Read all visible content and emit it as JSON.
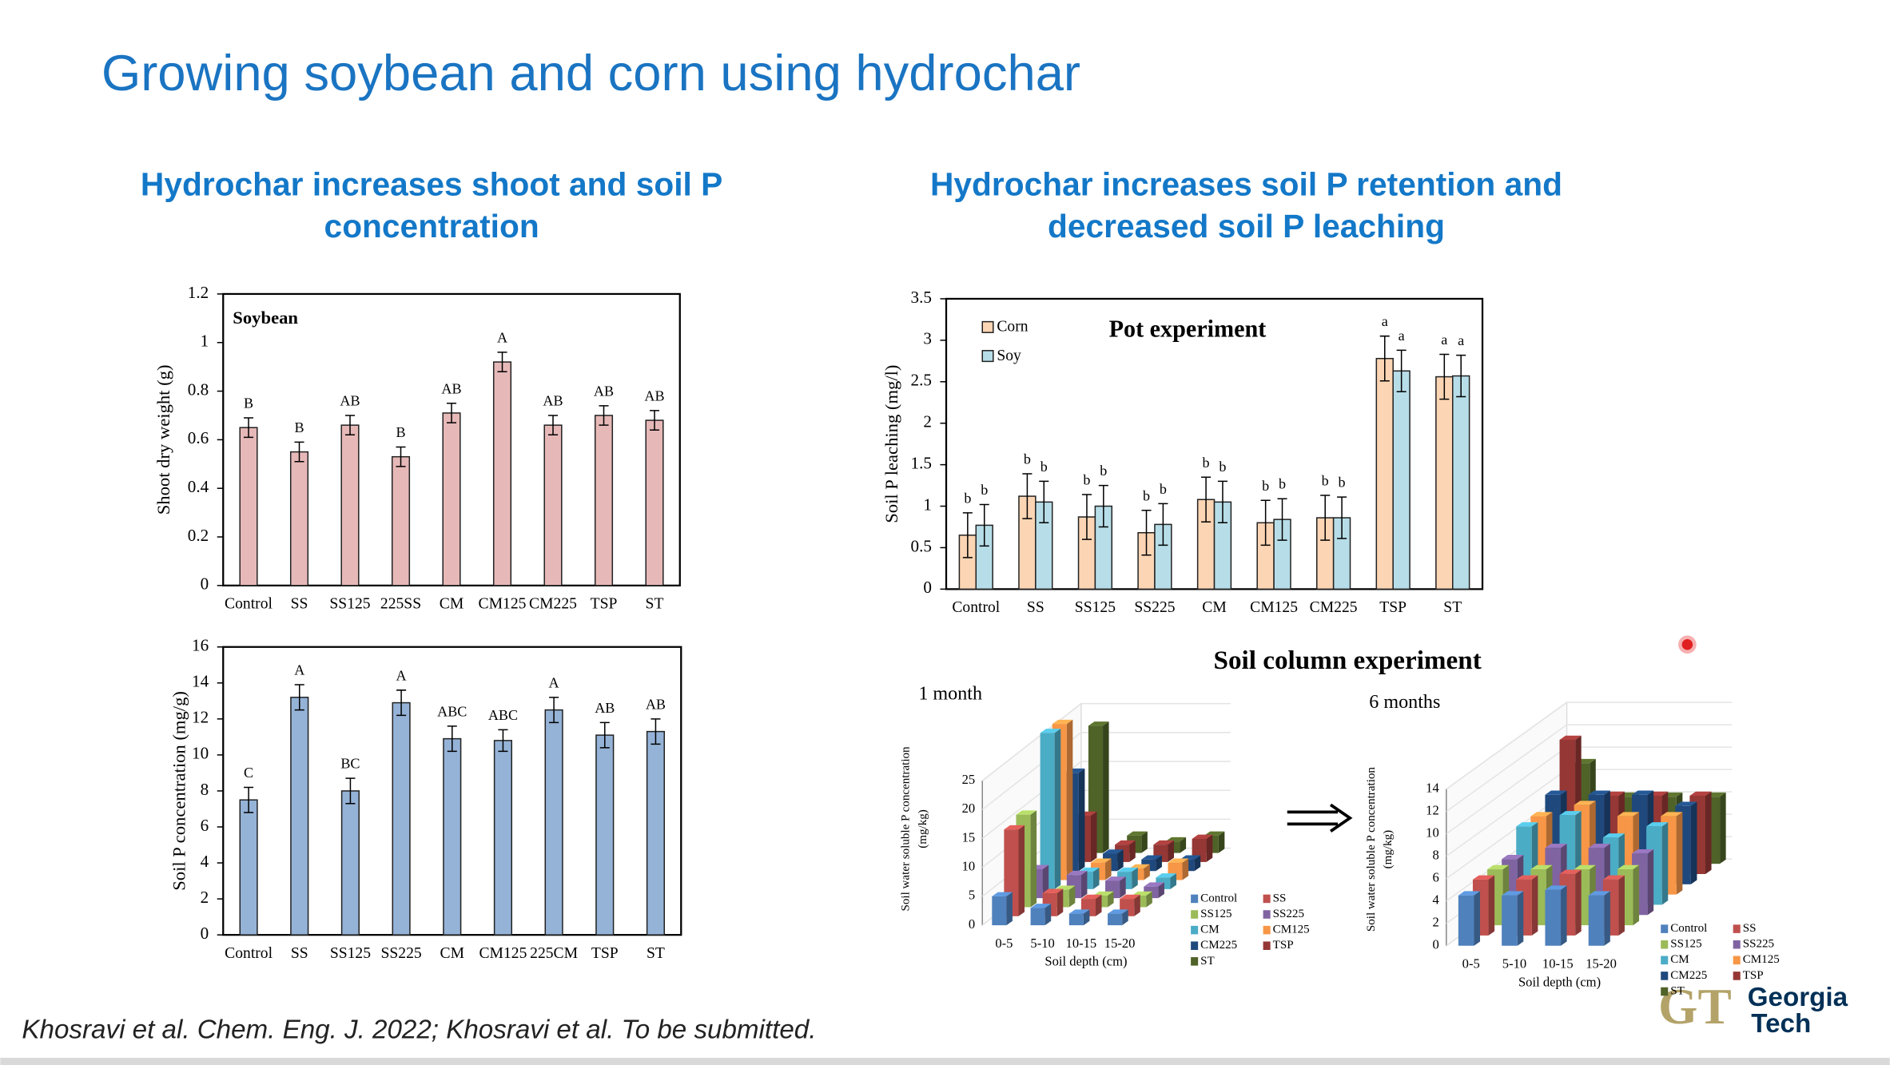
{
  "slide": {
    "title": "Growing soybean and corn using hydrochar",
    "left_heading": [
      "Hydrochar increases shoot and soil P",
      "concentration"
    ],
    "right_heading": [
      "Hydrochar increases soil P retention and",
      "decreased soil P leaching"
    ],
    "column_heading": "Soil column experiment",
    "citation": "Khosravi et al. Chem. Eng. J. 2022; Khosravi et al. To be submitted.",
    "logo": {
      "mark": "GT",
      "name": [
        "Georgia",
        "Tech"
      ]
    }
  },
  "chart_data": [
    {
      "type": "bar",
      "annotation": "Soybean",
      "y_label": "Shoot dry weight (g)",
      "categories": [
        "Control",
        "SS",
        "SS125",
        "225SS",
        "CM",
        "CM125",
        "CM225",
        "TSP",
        "ST"
      ],
      "values": [
        0.65,
        0.55,
        0.66,
        0.53,
        0.71,
        0.92,
        0.66,
        0.7,
        0.68
      ],
      "errors": [
        0.04,
        0.04,
        0.04,
        0.04,
        0.04,
        0.04,
        0.04,
        0.04,
        0.04
      ],
      "letters": [
        "B",
        "B",
        "AB",
        "B",
        "AB",
        "A",
        "AB",
        "AB",
        "AB"
      ],
      "color": "#e6b9b8",
      "ylim": [
        0,
        1.2
      ],
      "yticks": [
        0,
        0.2,
        0.4,
        0.6,
        0.8,
        1,
        1.2
      ]
    },
    {
      "type": "bar",
      "y_label": "Soil P concentration (mg/g)",
      "categories": [
        "Control",
        "SS",
        "SS125",
        "SS225",
        "CM",
        "CM125",
        "225CM",
        "TSP",
        "ST"
      ],
      "values": [
        7.5,
        13.2,
        8.0,
        12.9,
        10.9,
        10.8,
        12.5,
        11.1,
        11.3
      ],
      "errors": [
        0.7,
        0.7,
        0.7,
        0.7,
        0.7,
        0.6,
        0.7,
        0.7,
        0.7
      ],
      "letters": [
        "C",
        "A",
        "BC",
        "A",
        "ABC",
        "ABC",
        "A",
        "AB",
        "AB"
      ],
      "color": "#95b3d7",
      "ylim": [
        0,
        16
      ],
      "yticks": [
        0,
        2,
        4,
        6,
        8,
        10,
        12,
        14,
        16
      ]
    },
    {
      "type": "bar",
      "title": "Pot experiment",
      "y_label": "Soil P leaching (mg/l)",
      "categories": [
        "Control",
        "SS",
        "SS125",
        "SS225",
        "CM",
        "CM125",
        "CM225",
        "TSP",
        "ST"
      ],
      "series": [
        {
          "name": "Corn",
          "color": "#fcd5b4",
          "values": [
            0.65,
            1.12,
            0.87,
            0.68,
            1.08,
            0.8,
            0.86,
            2.78,
            2.56
          ],
          "errors": [
            0.27,
            0.27,
            0.27,
            0.27,
            0.27,
            0.27,
            0.27,
            0.27,
            0.27
          ],
          "letters": [
            "b",
            "b",
            "b",
            "b",
            "b",
            "b",
            "b",
            "a",
            "a"
          ]
        },
        {
          "name": "Soy",
          "color": "#b7dee8",
          "values": [
            0.77,
            1.05,
            1.0,
            0.78,
            1.05,
            0.84,
            0.86,
            2.63,
            2.57
          ],
          "errors": [
            0.25,
            0.25,
            0.25,
            0.25,
            0.25,
            0.25,
            0.25,
            0.25,
            0.25
          ],
          "letters": [
            "b",
            "b",
            "b",
            "b",
            "b",
            "b",
            "b",
            "a",
            "a"
          ]
        }
      ],
      "legend": "top-left",
      "ylim": [
        0,
        3.5
      ],
      "yticks": [
        0,
        0.5,
        1,
        1.5,
        2,
        2.5,
        3,
        3.5
      ]
    },
    {
      "type": "bar3d",
      "subtitle": "1 month",
      "y_label": [
        "Soil water soluble P concentration",
        "(mg/kg)"
      ],
      "x_label": "Soil depth (cm)",
      "categories": [
        "0-5",
        "5-10",
        "10-15",
        "15-20"
      ],
      "series": [
        {
          "name": "Control",
          "color": "#4f81bd",
          "values": [
            5,
            3,
            2,
            2
          ]
        },
        {
          "name": "SS",
          "color": "#c0504d",
          "values": [
            15,
            4,
            3,
            3
          ]
        },
        {
          "name": "SS125",
          "color": "#9bbb59",
          "values": [
            16,
            3,
            2,
            2
          ]
        },
        {
          "name": "SS225",
          "color": "#8064a2",
          "values": [
            5,
            4,
            3,
            2
          ]
        },
        {
          "name": "CM",
          "color": "#4bacc6",
          "values": [
            27,
            3,
            3,
            2
          ]
        },
        {
          "name": "CM125",
          "color": "#f79646",
          "values": [
            27,
            3,
            2,
            3
          ]
        },
        {
          "name": "CM225",
          "color": "#1f497d",
          "values": [
            17,
            3,
            2,
            2
          ]
        },
        {
          "name": "TSP",
          "color": "#953735",
          "values": [
            8,
            3,
            3,
            4
          ]
        },
        {
          "name": "ST",
          "color": "#4f6228",
          "values": [
            22,
            3,
            2,
            3
          ]
        }
      ],
      "ylim": [
        0,
        25
      ],
      "yticks": [
        0,
        5,
        10,
        15,
        20,
        25
      ]
    },
    {
      "type": "bar3d",
      "subtitle": "6 months",
      "y_label": [
        "Soil water soluble P concentration",
        "(mg/kg)"
      ],
      "x_label": "Soil depth (cm)",
      "categories": [
        "0-5",
        "5-10",
        "10-15",
        "15-20"
      ],
      "series": [
        {
          "name": "Control",
          "color": "#4f81bd",
          "values": [
            4.5,
            4.5,
            5,
            4.5
          ]
        },
        {
          "name": "SS",
          "color": "#c0504d",
          "values": [
            5,
            5,
            5.5,
            5
          ]
        },
        {
          "name": "SS125",
          "color": "#9bbb59",
          "values": [
            5,
            5,
            5,
            5
          ]
        },
        {
          "name": "SS225",
          "color": "#8064a2",
          "values": [
            5,
            6,
            6,
            5.5
          ]
        },
        {
          "name": "CM",
          "color": "#4bacc6",
          "values": [
            7,
            8,
            6,
            7
          ]
        },
        {
          "name": "CM125",
          "color": "#f79646",
          "values": [
            7,
            8,
            7,
            7
          ]
        },
        {
          "name": "CM225",
          "color": "#1f497d",
          "values": [
            8,
            8,
            8,
            7
          ]
        },
        {
          "name": "TSP",
          "color": "#953735",
          "values": [
            12,
            7,
            7,
            7
          ]
        },
        {
          "name": "ST",
          "color": "#4f6228",
          "values": [
            9,
            6,
            6,
            6
          ]
        }
      ],
      "ylim": [
        0,
        14
      ],
      "yticks": [
        0,
        2,
        4,
        6,
        8,
        10,
        12,
        14
      ]
    }
  ]
}
